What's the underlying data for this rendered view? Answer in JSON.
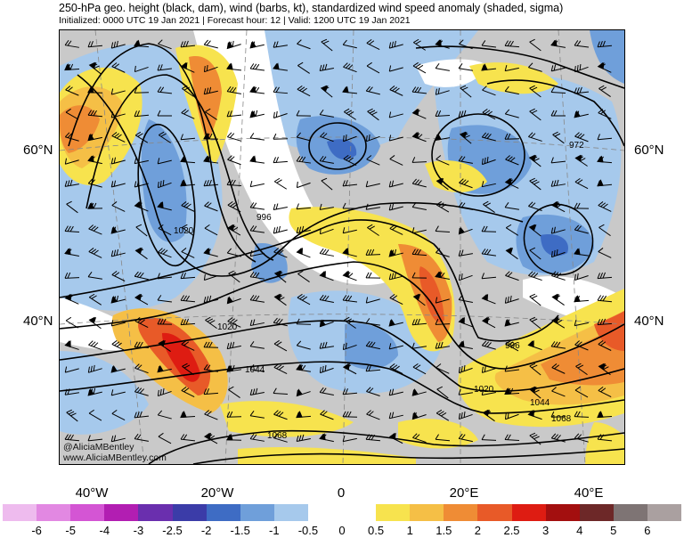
{
  "title": "250-hPa geo. height (black, dam), wind (barbs, kt), standardized wind speed anomaly (shaded, sigma)",
  "subtitle": "Initialized: 0000 UTC 19 Jan 2021 | Forecast hour: 12 | Valid: 1200 UTC 19 Jan 2021",
  "lat_labels": {
    "left_60": "60°N",
    "right_60": "60°N",
    "left_40": "40°N",
    "right_40": "40°N"
  },
  "lon_labels": [
    "40°W",
    "20°W",
    "0",
    "20°E",
    "40°E"
  ],
  "credit": {
    "handle": "@AliciaMBentley",
    "url": "www.AliciaMBentley.com"
  },
  "contour_labels": [
    "972",
    "996",
    "1020",
    "1020",
    "1044",
    "996",
    "1020",
    "1044",
    "1068",
    "1068"
  ],
  "legend": {
    "ticks": [
      "-6",
      "-5",
      "-4",
      "-3",
      "-2.5",
      "-2",
      "-1.5",
      "-1",
      "-0.5",
      "0",
      "0.5",
      "1",
      "1.5",
      "2",
      "2.5",
      "3",
      "4",
      "5",
      "6"
    ],
    "colors": [
      "#eebbee",
      "#e288e2",
      "#d455d4",
      "#b21eb2",
      "#6a2fae",
      "#3b3ca8",
      "#3e6cc4",
      "#6f9fda",
      "#a6c9ec",
      "#ffffff",
      "#ffffff",
      "#f7e34e",
      "#f5bf46",
      "#ef8c35",
      "#e85a28",
      "#de1c12",
      "#a30f0f",
      "#6d2828",
      "#7e7474",
      "#aaa0a0"
    ]
  }
}
